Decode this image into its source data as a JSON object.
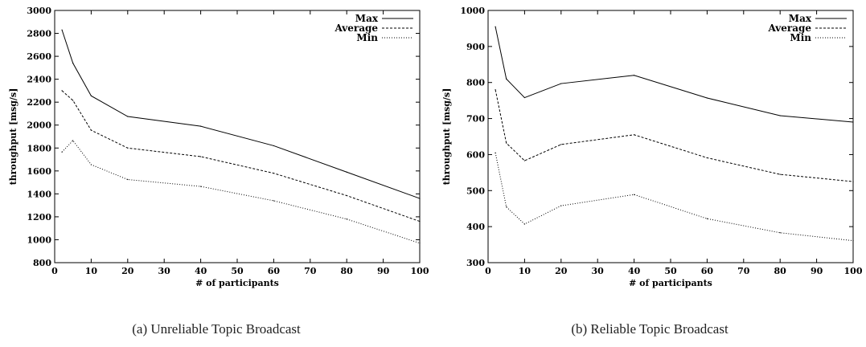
{
  "chart_data": [
    {
      "type": "line",
      "caption": "(a) Unreliable Topic Broadcast",
      "xlabel": "# of participants",
      "ylabel": "throughput [msg/s]",
      "xlim": [
        0,
        100
      ],
      "ylim": [
        800,
        3000
      ],
      "xticks": [
        0,
        10,
        20,
        30,
        40,
        50,
        60,
        70,
        80,
        90,
        100
      ],
      "yticks": [
        800,
        1000,
        1200,
        1400,
        1600,
        1800,
        2000,
        2200,
        2400,
        2600,
        2800,
        3000
      ],
      "legend_position": "top-right",
      "x": [
        2,
        5,
        10,
        20,
        40,
        60,
        80,
        100
      ],
      "series": [
        {
          "name": "Max",
          "style": "solid",
          "values": [
            2830,
            2540,
            2255,
            2075,
            1990,
            1820,
            1590,
            1360
          ]
        },
        {
          "name": "Average",
          "style": "dashed",
          "values": [
            2300,
            2215,
            1955,
            1800,
            1725,
            1580,
            1385,
            1160
          ]
        },
        {
          "name": "Min",
          "style": "dotted",
          "values": [
            1765,
            1865,
            1655,
            1525,
            1465,
            1340,
            1180,
            970
          ]
        }
      ]
    },
    {
      "type": "line",
      "caption": "(b) Reliable Topic Broadcast",
      "xlabel": "# of participants",
      "ylabel": "throughput [msg/s]",
      "xlim": [
        0,
        100
      ],
      "ylim": [
        300,
        1000
      ],
      "xticks": [
        0,
        10,
        20,
        30,
        40,
        50,
        60,
        70,
        80,
        90,
        100
      ],
      "yticks": [
        300,
        400,
        500,
        600,
        700,
        800,
        900,
        1000
      ],
      "legend_position": "top-right",
      "x": [
        2,
        5,
        10,
        20,
        40,
        60,
        80,
        100
      ],
      "series": [
        {
          "name": "Max",
          "style": "solid",
          "values": [
            955,
            810,
            758,
            797,
            820,
            757,
            708,
            690
          ]
        },
        {
          "name": "Average",
          "style": "dashed",
          "values": [
            780,
            632,
            583,
            628,
            655,
            591,
            545,
            525
          ]
        },
        {
          "name": "Min",
          "style": "dotted",
          "values": [
            605,
            455,
            407,
            458,
            489,
            422,
            383,
            361
          ]
        }
      ]
    }
  ]
}
